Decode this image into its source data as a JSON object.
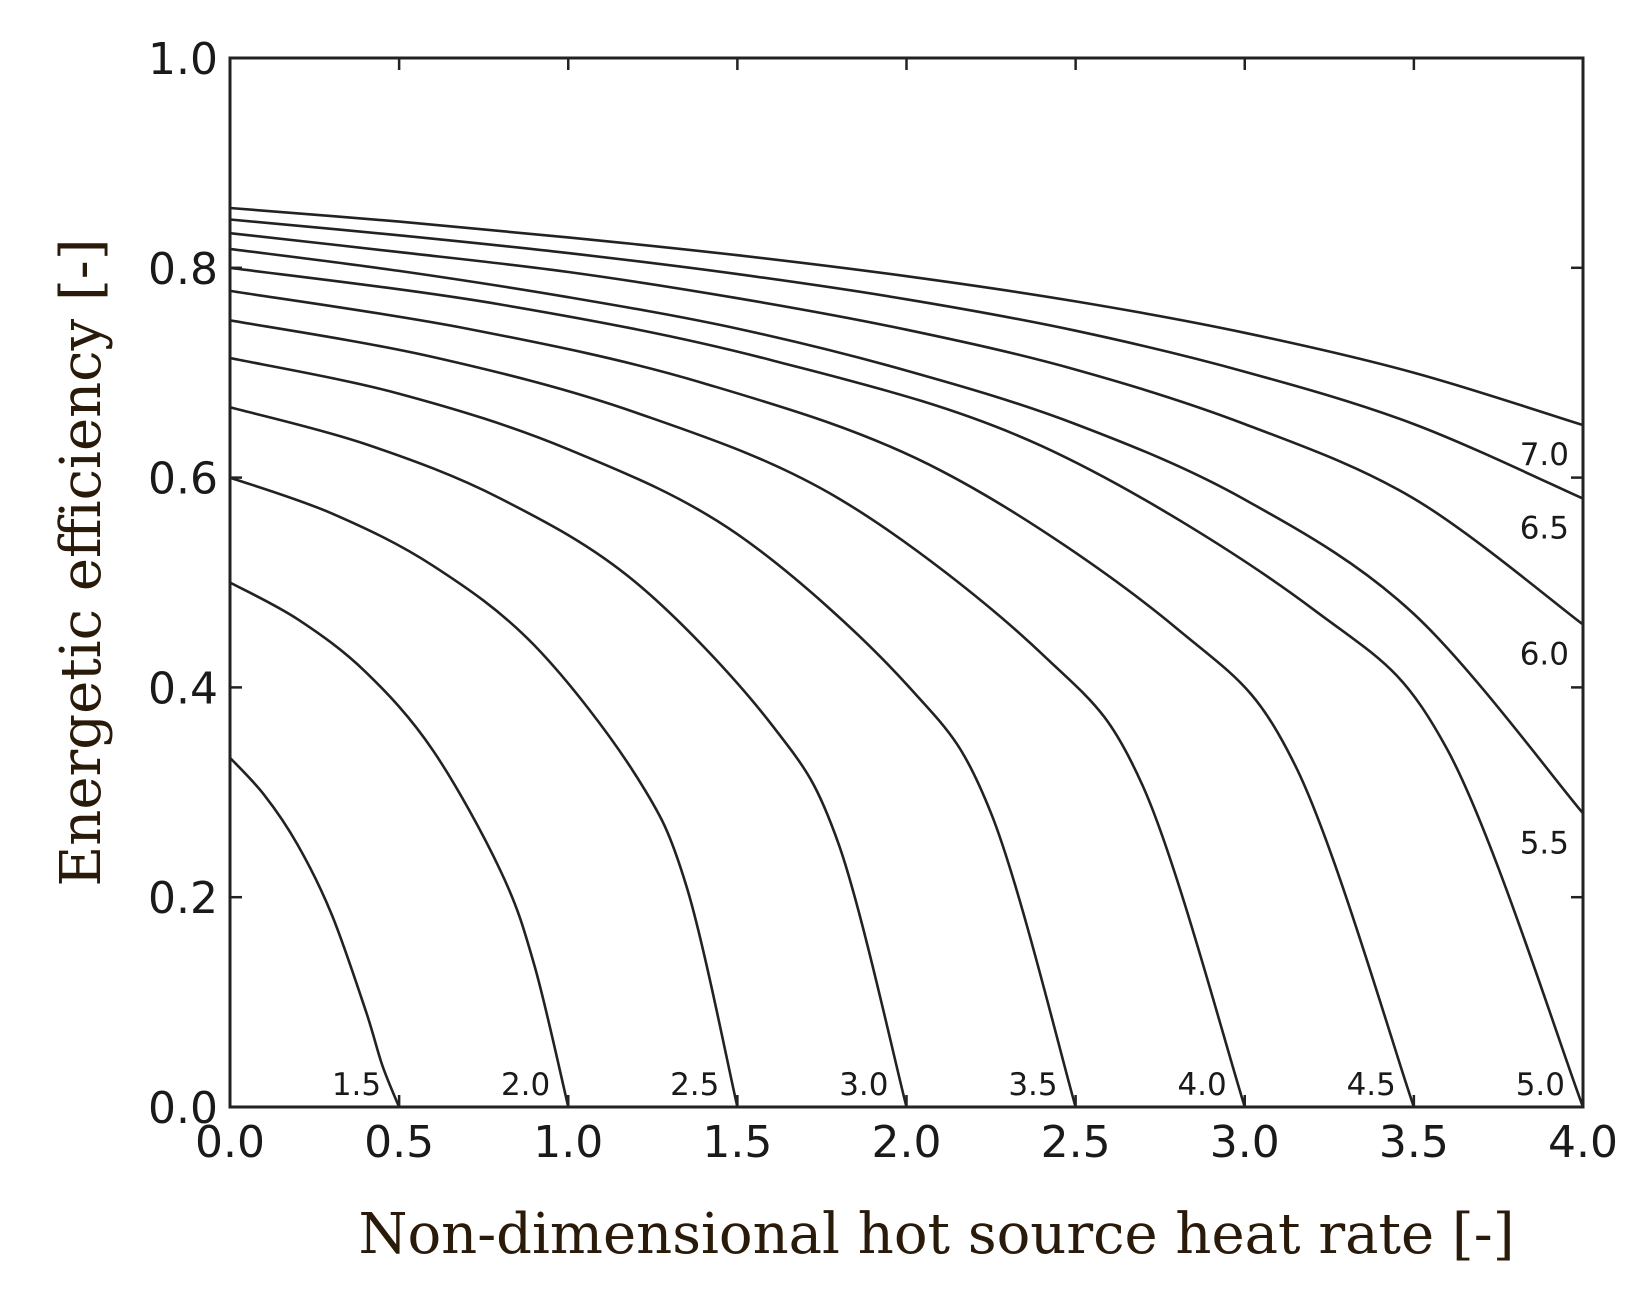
{
  "chart_data": {
    "type": "line",
    "title": "",
    "xlabel": "Non-dimensional hot source heat rate [-]",
    "ylabel": "Energetic efficiency [-]",
    "xlim": [
      0.0,
      4.0
    ],
    "ylim": [
      0.0,
      1.0
    ],
    "x_ticks": [
      "0.0",
      "0.5",
      "1.0",
      "1.5",
      "2.0",
      "2.5",
      "3.0",
      "3.5",
      "4.0"
    ],
    "y_ticks": [
      "0.0",
      "0.2",
      "0.4",
      "0.6",
      "0.8",
      "1.0"
    ],
    "grid": false,
    "legend": "none",
    "series": [
      {
        "name": "1.5",
        "x": [
          0.0,
          0.1,
          0.2,
          0.3,
          0.4,
          0.45,
          0.5
        ],
        "y": [
          0.333,
          0.298,
          0.25,
          0.184,
          0.093,
          0.04,
          0.0
        ]
      },
      {
        "name": "2.0",
        "x": [
          0.0,
          0.2,
          0.4,
          0.6,
          0.8,
          0.9,
          1.0
        ],
        "y": [
          0.5,
          0.465,
          0.415,
          0.34,
          0.225,
          0.135,
          0.0
        ]
      },
      {
        "name": "2.5",
        "x": [
          0.0,
          0.3,
          0.6,
          0.9,
          1.2,
          1.35,
          1.5
        ],
        "y": [
          0.6,
          0.566,
          0.516,
          0.44,
          0.316,
          0.21,
          0.0
        ]
      },
      {
        "name": "3.0",
        "x": [
          0.0,
          0.4,
          0.8,
          1.2,
          1.6,
          1.8,
          2.0
        ],
        "y": [
          0.667,
          0.632,
          0.58,
          0.5,
          0.365,
          0.25,
          0.0
        ]
      },
      {
        "name": "3.5",
        "x": [
          0.0,
          0.5,
          1.0,
          1.5,
          2.0,
          2.25,
          2.5
        ],
        "y": [
          0.714,
          0.68,
          0.627,
          0.546,
          0.403,
          0.28,
          0.0
        ]
      },
      {
        "name": "4.0",
        "x": [
          0.0,
          0.6,
          1.2,
          1.8,
          2.4,
          2.7,
          3.0
        ],
        "y": [
          0.75,
          0.715,
          0.662,
          0.58,
          0.432,
          0.305,
          0.0
        ]
      },
      {
        "name": "4.5",
        "x": [
          0.0,
          0.7,
          1.4,
          2.1,
          2.8,
          3.15,
          3.5
        ],
        "y": [
          0.778,
          0.742,
          0.69,
          0.607,
          0.456,
          0.325,
          0.0
        ]
      },
      {
        "name": "5.0",
        "x": [
          0.0,
          0.8,
          1.6,
          2.4,
          3.2,
          3.6,
          4.0
        ],
        "y": [
          0.8,
          0.765,
          0.712,
          0.63,
          0.475,
          0.34,
          0.0
        ]
      },
      {
        "name": "5.5",
        "x": [
          0.0,
          0.5,
          1.0,
          1.5,
          2.0,
          2.5,
          3.0,
          3.5,
          4.0
        ],
        "y": [
          0.818,
          0.797,
          0.772,
          0.742,
          0.702,
          0.651,
          0.579,
          0.47,
          0.28
        ]
      },
      {
        "name": "6.0",
        "x": [
          0.0,
          0.5,
          1.0,
          1.5,
          2.0,
          2.5,
          3.0,
          3.5,
          4.0
        ],
        "y": [
          0.833,
          0.815,
          0.796,
          0.771,
          0.741,
          0.703,
          0.651,
          0.58,
          0.46
        ]
      },
      {
        "name": "6.5",
        "x": [
          0.0,
          0.5,
          1.0,
          1.5,
          2.0,
          2.5,
          3.0,
          3.5,
          4.0
        ],
        "y": [
          0.846,
          0.831,
          0.814,
          0.794,
          0.77,
          0.74,
          0.701,
          0.651,
          0.58
        ]
      },
      {
        "name": "7.0",
        "x": [
          0.0,
          0.5,
          1.0,
          1.5,
          2.0,
          2.5,
          3.0,
          3.5,
          4.0
        ],
        "y": [
          0.857,
          0.844,
          0.829,
          0.812,
          0.792,
          0.768,
          0.738,
          0.7,
          0.65
        ]
      }
    ]
  }
}
